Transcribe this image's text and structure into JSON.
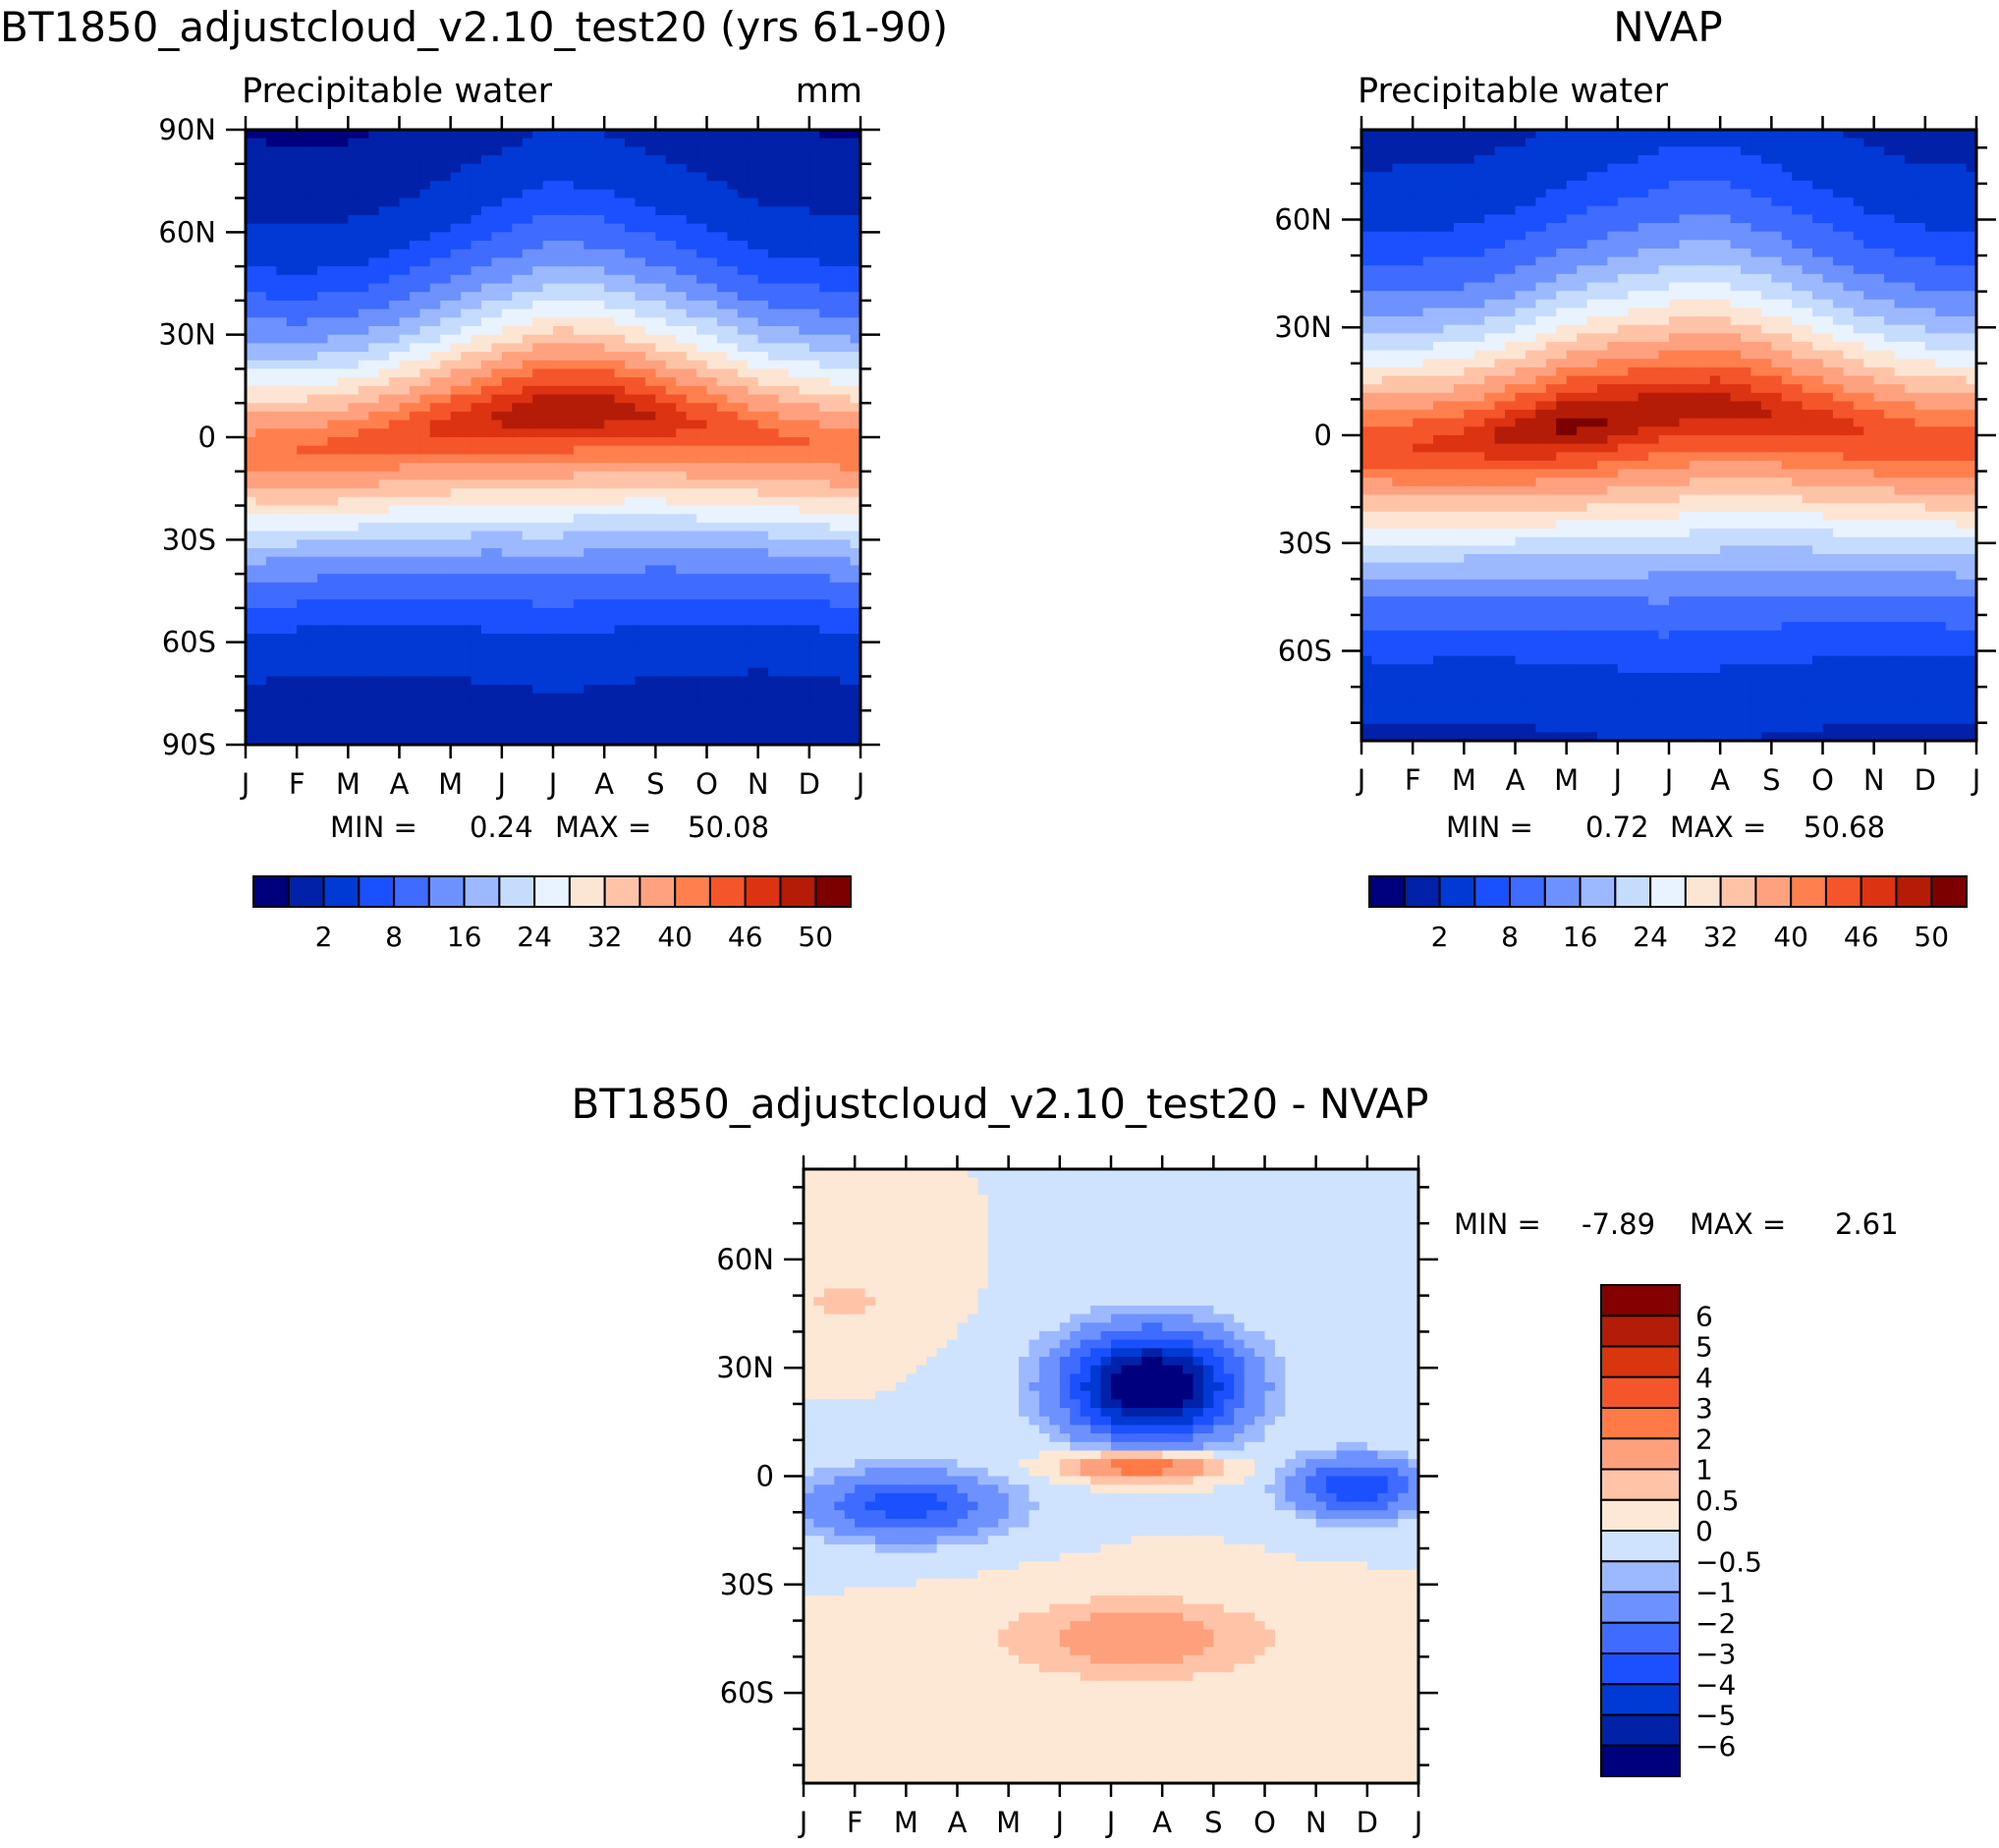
{
  "colors": {
    "pw_levels": [
      "#00007f",
      "#0021a8",
      "#0039d4",
      "#1a50ff",
      "#3f6cff",
      "#6d92ff",
      "#9cb8ff",
      "#c6dcff",
      "#e9f3ff",
      "#fde5d3",
      "#ffc4a8",
      "#ffa17e",
      "#ff7f4f",
      "#f5552b",
      "#dc3313",
      "#b41c08",
      "#7c0000"
    ],
    "diff_levels": [
      "#00007f",
      "#0021a8",
      "#0039d4",
      "#1a50ff",
      "#3f6cff",
      "#6d92ff",
      "#9cb8ff",
      "#cfe3ff",
      "#fde7d5",
      "#ffc3a8",
      "#ffa07d",
      "#ff7a46",
      "#f5552b",
      "#d9360f",
      "#b21c08",
      "#850000"
    ]
  },
  "chart_data": [
    {
      "type": "heatmap",
      "title": "BT1850_adjustcloud_v2.10_test20 (yrs 61-90)",
      "subtitle": "Precipitable water",
      "units": "mm",
      "x_tick_labels": [
        "J",
        "F",
        "M",
        "A",
        "M",
        "J",
        "J",
        "A",
        "S",
        "O",
        "N",
        "D",
        "J"
      ],
      "y_tick_labels": [
        "90N",
        "60N",
        "30N",
        "0",
        "30S",
        "60S",
        "90S"
      ],
      "y_tick_values": [
        90,
        60,
        30,
        0,
        -30,
        -60,
        -90
      ],
      "ylim": [
        -90,
        90
      ],
      "min_label": "MIN =",
      "min_value": "0.24",
      "max_label": "MAX =",
      "max_value": "50.08",
      "contour_levels": [
        0.5,
        2,
        5,
        8,
        12,
        16,
        20,
        24,
        28,
        32,
        36,
        40,
        43,
        46,
        48,
        50
      ],
      "colorbar_labels": [
        "2",
        "8",
        "16",
        "24",
        "32",
        "40",
        "46",
        "50"
      ],
      "model": {
        "peak_value": 50.08,
        "min_value": 0.24,
        "itcz_lat_by_month": [
          -4,
          -4,
          -3,
          0,
          3,
          6,
          8,
          8,
          6,
          3,
          0,
          -2,
          -4
        ],
        "itcz_amp_by_month": [
          42,
          43,
          44,
          45,
          47,
          48.5,
          50,
          49.5,
          48,
          46,
          44,
          43,
          42
        ],
        "width_by_month": [
          33,
          32,
          32,
          33,
          35,
          37,
          39,
          38,
          36,
          35,
          33,
          33,
          33
        ]
      }
    },
    {
      "type": "heatmap",
      "title": "NVAP",
      "subtitle": "Precipitable water",
      "x_tick_labels": [
        "J",
        "F",
        "M",
        "A",
        "M",
        "J",
        "J",
        "A",
        "S",
        "O",
        "N",
        "D",
        "J"
      ],
      "y_tick_labels": [
        "60N",
        "30N",
        "0",
        "30S",
        "60S"
      ],
      "y_tick_values": [
        60,
        30,
        0,
        -30,
        -60
      ],
      "ylim": [
        -85,
        85
      ],
      "min_label": "MIN =",
      "min_value": "0.72",
      "max_label": "MAX =",
      "max_value": "50.68",
      "contour_levels": [
        0.5,
        2,
        5,
        8,
        12,
        16,
        20,
        24,
        28,
        32,
        36,
        40,
        43,
        46,
        48,
        50
      ],
      "colorbar_labels": [
        "2",
        "8",
        "16",
        "24",
        "32",
        "40",
        "46",
        "50"
      ],
      "model": {
        "peak_value": 50.68,
        "min_value": 0.72,
        "itcz_lat_by_month": [
          -3,
          -3,
          -2,
          0,
          3,
          5,
          7,
          8,
          6,
          3,
          0,
          -2,
          -3
        ],
        "itcz_amp_by_month": [
          45,
          46,
          47,
          49,
          50.5,
          50,
          49,
          49,
          48,
          47,
          46,
          45,
          45
        ],
        "width_by_month": [
          35,
          35,
          35,
          36,
          38,
          40,
          42,
          42,
          40,
          38,
          36,
          35,
          35
        ]
      }
    },
    {
      "type": "heatmap",
      "title": "BT1850_adjustcloud_v2.10_test20 - NVAP",
      "x_tick_labels": [
        "J",
        "F",
        "M",
        "A",
        "M",
        "J",
        "J",
        "A",
        "S",
        "O",
        "N",
        "D",
        "J"
      ],
      "y_tick_labels": [
        "60N",
        "30N",
        "0",
        "30S",
        "60S"
      ],
      "y_tick_values": [
        60,
        30,
        0,
        -30,
        -60
      ],
      "ylim": [
        -85,
        85
      ],
      "min_label": "MIN =",
      "min_value": "-7.89",
      "max_label": "MAX =",
      "max_value": "2.61",
      "contour_levels": [
        -6,
        -5,
        -4,
        -3,
        -2,
        -1,
        -0.5,
        0,
        0.5,
        1,
        2,
        3,
        4,
        5,
        6
      ],
      "colorbar_labels": [
        "6",
        "5",
        "4",
        "3",
        "2",
        "1",
        "0.5",
        "0",
        "−0.5",
        "−1",
        "−2",
        "−3",
        "−4",
        "−5",
        "−6"
      ],
      "model": {
        "features": [
          {
            "month": 6.8,
            "lat": 25,
            "dm": 1.6,
            "dlat": 14,
            "amp": -7.9
          },
          {
            "month": 6.6,
            "lat": 3,
            "dm": 1.4,
            "dlat": 4,
            "amp": 3.2
          },
          {
            "month": 2.0,
            "lat": -8,
            "dm": 1.8,
            "dlat": 9,
            "amp": -3.5
          },
          {
            "month": 10.8,
            "lat": -3,
            "dm": 1.2,
            "dlat": 8,
            "amp": -3.8
          },
          {
            "month": 6.5,
            "lat": -45,
            "dm": 2.5,
            "dlat": 11,
            "amp": 1.5
          },
          {
            "month": 0.8,
            "lat": 48,
            "dm": 1.2,
            "dlat": 9,
            "amp": 0.6
          }
        ]
      }
    }
  ]
}
